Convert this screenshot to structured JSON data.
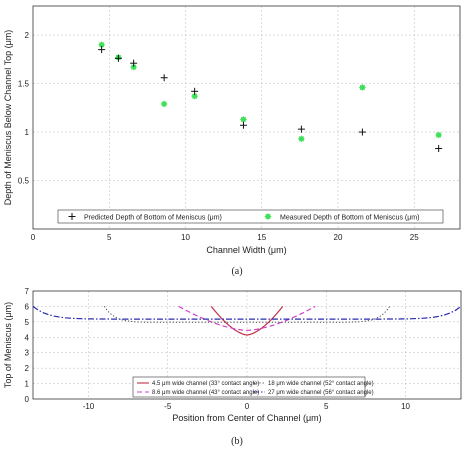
{
  "chart_data": [
    {
      "type": "scatter",
      "caption": "(a)",
      "xlabel": "Channel Width (μm)",
      "ylabel": "Depth of Meniscus Below Channel Top (μm)",
      "xlim": [
        0,
        28
      ],
      "ylim": [
        0,
        2.3
      ],
      "xticks": [
        0,
        5,
        10,
        15,
        20,
        25
      ],
      "yticks": [
        0.5,
        1,
        1.5,
        2
      ],
      "grid": true,
      "legend_position": "bottom",
      "series": [
        {
          "name": "Predicted Depth of Bottom of Meniscus (μm)",
          "marker": "plus",
          "color": "#111111",
          "x": [
            4.5,
            5.6,
            6.6,
            8.6,
            10.6,
            13.8,
            17.6,
            21.6,
            26.6
          ],
          "y": [
            1.85,
            1.76,
            1.71,
            1.56,
            1.42,
            1.07,
            1.03,
            1.0,
            0.83
          ]
        },
        {
          "name": "Measured Depth of Bottom of Meniscus (μm)",
          "marker": "star",
          "color": "#3fe05a",
          "x": [
            4.5,
            5.6,
            6.6,
            8.6,
            10.6,
            13.8,
            17.6,
            21.6,
            26.6
          ],
          "y": [
            1.9,
            1.77,
            1.67,
            1.29,
            1.37,
            1.13,
            0.93,
            1.46,
            0.97
          ]
        }
      ]
    },
    {
      "type": "line",
      "caption": "(b)",
      "xlabel": "Position from Center of Channel (μm)",
      "ylabel": "Top of Meniscus (μm)",
      "xlim": [
        -13.5,
        13.5
      ],
      "ylim": [
        0,
        7
      ],
      "xticks": [
        -10,
        -5,
        0,
        5,
        10
      ],
      "yticks": [
        0,
        1,
        2,
        3,
        4,
        5,
        6,
        7
      ],
      "grid": true,
      "legend_position": "bottom",
      "series": [
        {
          "name": "4.5 μm wide channel (33° contact angle)",
          "color": "#c0304a",
          "dash": "solid",
          "width": 4.5,
          "bottom": 4.15,
          "top": 6.0
        },
        {
          "name": "8.6 μm wide channel (43° contact angle)",
          "color": "#d040c8",
          "dash": "dashed",
          "width": 8.6,
          "bottom": 4.45,
          "top": 6.0
        },
        {
          "name": "18 μm wide channel (52° contact angle)",
          "color": "#444444",
          "dash": "dotted",
          "width": 18,
          "bottom": 4.97,
          "top": 6.0
        },
        {
          "name": "27 μm wide channel (56° contact angle)",
          "color": "#2a2ab0",
          "dash": "dashdot",
          "width": 27,
          "bottom": 5.18,
          "top": 6.0
        }
      ]
    }
  ]
}
